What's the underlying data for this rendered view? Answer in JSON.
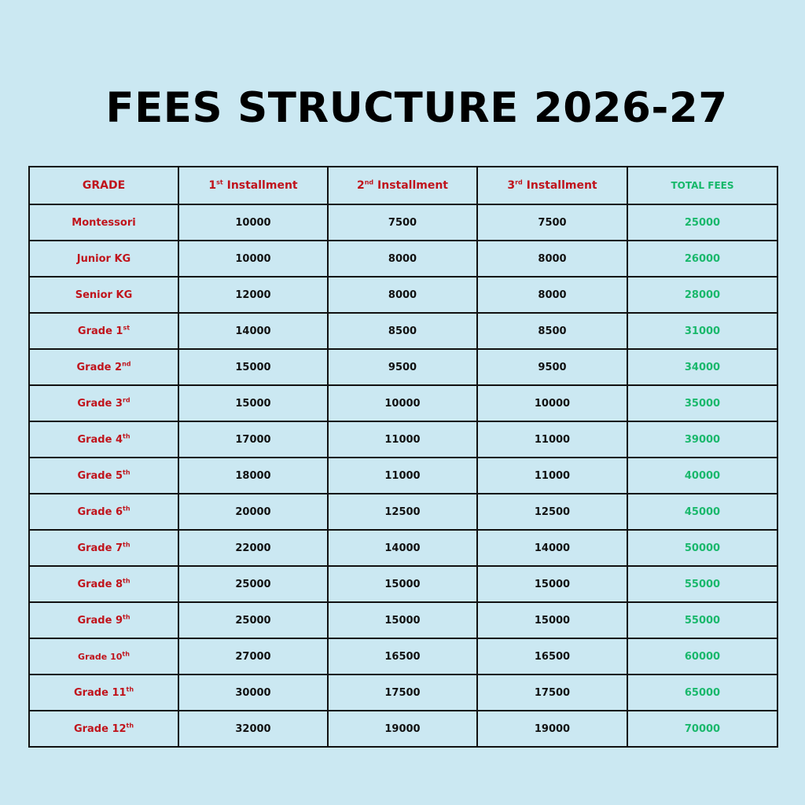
{
  "title": "FEES STRUCTURE 2026-27",
  "colors": {
    "background": "#cbe8f2",
    "grade_red": "#c0141c",
    "total_green": "#1ab86c",
    "border": "#111111"
  },
  "table": {
    "headers": {
      "grade": "GRADE",
      "inst1_num": "1",
      "inst1_sup": "st",
      "inst1_label": " Installment",
      "inst2_num": "2",
      "inst2_sup": "nd",
      "inst2_label": " Installment",
      "inst3_num": "3",
      "inst3_sup": "rd",
      "inst3_label": " Installment",
      "total": "TOTAL FEES"
    },
    "rows": [
      {
        "grade": "Montessori",
        "sup": "",
        "inst1": "10000",
        "inst2": "7500",
        "inst3": "7500",
        "total": "25000"
      },
      {
        "grade": "Junior KG",
        "sup": "",
        "inst1": "10000",
        "inst2": "8000",
        "inst3": "8000",
        "total": "26000"
      },
      {
        "grade": "Senior KG",
        "sup": "",
        "inst1": "12000",
        "inst2": "8000",
        "inst3": "8000",
        "total": "28000"
      },
      {
        "grade": "Grade 1",
        "sup": "st",
        "inst1": "14000",
        "inst2": "8500",
        "inst3": "8500",
        "total": "31000"
      },
      {
        "grade": "Grade 2",
        "sup": "nd",
        "inst1": "15000",
        "inst2": "9500",
        "inst3": "9500",
        "total": "34000"
      },
      {
        "grade": "Grade 3",
        "sup": "rd",
        "inst1": "15000",
        "inst2": "10000",
        "inst3": "10000",
        "total": "35000"
      },
      {
        "grade": "Grade 4",
        "sup": "th",
        "inst1": "17000",
        "inst2": "11000",
        "inst3": "11000",
        "total": "39000"
      },
      {
        "grade": "Grade 5",
        "sup": "th",
        "inst1": "18000",
        "inst2": "11000",
        "inst3": "11000",
        "total": "40000"
      },
      {
        "grade": "Grade 6",
        "sup": "th",
        "inst1": "20000",
        "inst2": "12500",
        "inst3": "12500",
        "total": "45000"
      },
      {
        "grade": "Grade 7",
        "sup": "th",
        "inst1": "22000",
        "inst2": "14000",
        "inst3": "14000",
        "total": "50000"
      },
      {
        "grade": "Grade 8",
        "sup": "th",
        "inst1": "25000",
        "inst2": "15000",
        "inst3": "15000",
        "total": "55000"
      },
      {
        "grade": "Grade 9",
        "sup": "th",
        "inst1": "25000",
        "inst2": "15000",
        "inst3": "15000",
        "total": "55000"
      },
      {
        "grade": "Grade 10",
        "sup": "th",
        "inst1": "27000",
        "inst2": "16500",
        "inst3": "16500",
        "total": "60000"
      },
      {
        "grade": "Grade 11",
        "sup": "th",
        "inst1": "30000",
        "inst2": "17500",
        "inst3": "17500",
        "total": "65000"
      },
      {
        "grade": "Grade 12",
        "sup": "th",
        "inst1": "32000",
        "inst2": "19000",
        "inst3": "19000",
        "total": "70000"
      }
    ]
  }
}
